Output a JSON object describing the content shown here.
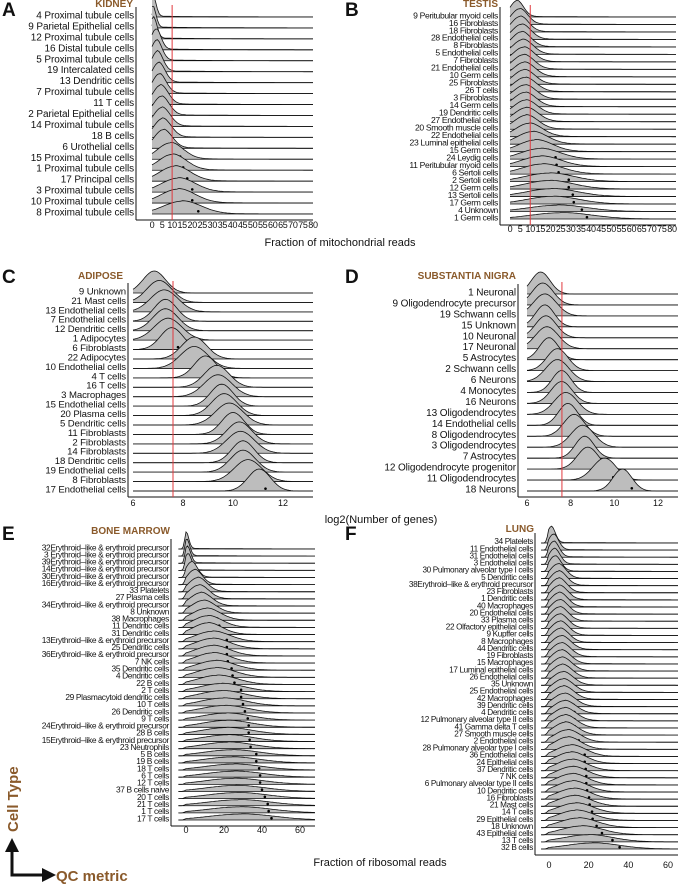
{
  "figure": {
    "axis_titles": {
      "mito": "Fraction of mitochondrial reads",
      "genes": "log2(Number of genes)",
      "ribo": "Fraction of ribosomal reads"
    },
    "legend": {
      "y_label": "Cell Type",
      "x_label": "QC metric"
    },
    "colors": {
      "density_fill": "#bdbdbd",
      "threshold": "#e0393e",
      "title": "#8a5a2b"
    }
  },
  "chart_data": [
    {
      "panel": "A",
      "title": "KIDNEY",
      "type": "ridgeline",
      "metric": "mito",
      "xlim": [
        0,
        80
      ],
      "threshold": 10,
      "ticks": [
        0,
        5,
        10,
        15,
        20,
        25,
        30,
        35,
        40,
        45,
        50,
        55,
        60,
        65,
        70,
        75,
        80
      ],
      "categories": [
        "4 Proximal tubule cells",
        "9 Parietal Epithelial cells",
        "12 Proximal tubule cells",
        "16 Distal tubule cells",
        "5 Proximal tubule cells",
        "19 Intercalated cells",
        "13 Dendritic cells",
        "7 Proximal tubule cells",
        "11 T cells",
        "2 Parietal Epithelial cells",
        "14 Proximal tubule cells",
        "18 B cells",
        "6 Urothelial cells",
        "15 Proximal tubule cells",
        "1 Proximal tubule cells",
        "17 Principal cells",
        "3 Proximal tubule cells",
        "10 Proximal tubule cells",
        "8 Proximal tubule cells"
      ],
      "medians": [
        0.5,
        0.5,
        1,
        3,
        3.5,
        4,
        5,
        5.5,
        6.5,
        7,
        7.5,
        8,
        8.5,
        14,
        15.5,
        17.5,
        20,
        20,
        23
      ]
    },
    {
      "panel": "B",
      "title": "TESTIS",
      "type": "ridgeline",
      "metric": "mito",
      "xlim": [
        0,
        80
      ],
      "threshold": 10,
      "ticks": [
        0,
        5,
        10,
        15,
        20,
        25,
        30,
        35,
        40,
        45,
        50,
        55,
        60,
        65,
        70,
        75,
        80
      ],
      "categories": [
        "9 Peritubular myoid cells",
        "16 Fibroblasts",
        "18 Fibroblasts",
        "28 Endothelial cells",
        "8 Fibroblasts",
        "5 Endothelial cells",
        "7 Fibroblasts",
        "21 Endothelial cells",
        "10 Germ cells",
        "25 Fibroblasts",
        "26 T cells",
        "3 Fibroblasts",
        "14 Germ cells",
        "19 Dendritic cells",
        "27 Endothelial cells",
        "20 Smooth muscle cells",
        "22 Endothelial cells",
        "23 Luminal epithelial cells",
        "15 Germ cells",
        "24 Leydig cells",
        "11 Peritubular myoid cells",
        "6 Sertoli cells",
        "2 Sertoli cells",
        "12 Germ cells",
        "13 Sertoli cells",
        "17 Germ cells",
        "4 Unknown",
        "1 Germ cells"
      ],
      "medians": [
        5,
        7,
        7.5,
        8.5,
        8.5,
        9.5,
        10,
        10,
        10.5,
        10.5,
        11,
        11,
        11,
        11.5,
        12,
        12,
        14,
        16.5,
        19,
        22.5,
        23,
        24,
        29,
        29,
        31,
        31.5,
        35.5,
        38
      ]
    },
    {
      "panel": "C",
      "title": "ADIPOSE",
      "type": "ridgeline",
      "metric": "genes",
      "xlim": [
        6,
        13.2
      ],
      "threshold": 7.6,
      "ticks": [
        6,
        8,
        10,
        12
      ],
      "categories": [
        "9 Unknown",
        "21 Mast cells",
        "13 Endothelial cells",
        "7 Endothelial cells",
        "12 Dendritic cells",
        "1 Adipocytes",
        "6 Fibroblasts",
        "22 Adipocytes",
        "10 Endothelial cells",
        "4 T cells",
        "16 T cells",
        "3 Macrophages",
        "15 Endothelial cells",
        "20 Plasma cells",
        "5 Dendritic cells",
        "11 Fibroblasts",
        "2 Fibroblasts",
        "14 Fibroblasts",
        "18 Dendritic cells",
        "19 Endothelial cells",
        "8 Fibroblasts",
        "17 Endothelial cells"
      ],
      "medians": [
        7.1,
        7.3,
        7.5,
        7.55,
        7.55,
        7.65,
        7.8,
        8.7,
        8.7,
        9.15,
        9.6,
        9.65,
        9.8,
        9.9,
        10.1,
        10.25,
        10.5,
        10.55,
        10.65,
        10.65,
        10.85,
        11.3
      ]
    },
    {
      "panel": "D",
      "title": "SUBSTANTIA NIGRA",
      "type": "ridgeline",
      "metric": "genes",
      "xlim": [
        6,
        13.2
      ],
      "threshold": 7.6,
      "ticks": [
        6,
        8,
        10,
        12
      ],
      "categories": [
        "1 Neuronal",
        "9 Oligodendrocyte precursor",
        "19 Schwann cells",
        "15 Unknown",
        "10 Neuronal",
        "17 Neuronal",
        "5 Astrocytes",
        "2 Schwann cells",
        "6 Neurons",
        "4 Monocytes",
        "16 Neurons",
        "13 Oligodendrocytes",
        "14 Endothelial cells",
        "8 Oligodendrocytes",
        "3 Oligodendrocytes",
        "7 Astrocytes",
        "12 Oligodendrocyte progenitor",
        "11 Oligodendrocytes",
        "18 Neurons"
      ],
      "medians": [
        6.9,
        7.0,
        7.1,
        7.1,
        7.15,
        7.2,
        7.3,
        7.7,
        7.7,
        7.9,
        7.9,
        8.1,
        8.2,
        8.5,
        8.9,
        9.0,
        9.15,
        9.95,
        10.8
      ]
    },
    {
      "panel": "E",
      "title": "BONE MARROW",
      "type": "ridgeline",
      "metric": "ribo",
      "xlim": [
        -4,
        68
      ],
      "threshold": null,
      "ticks": [
        0,
        20,
        40,
        60
      ],
      "categories": [
        "32Erythroid–like & erythroid precursor",
        "3 Erythroid–like & erythroid precursor",
        "39Erythroid–like & erythroid precursor",
        "14Erythroid–like & erythroid precursor",
        "30Erythroid–like & erythroid precursor",
        "16Erythroid–like & erythroid precursor",
        "33 Platelets",
        "27 Plasma cells",
        "34Erythroid–like & erythroid precursor",
        "8 Unknown",
        "38 Macrophages",
        "11 Dendritic cells",
        "31 Dendritic cells",
        "13Erythroid–like & erythroid precursor",
        "25 Dendritic cells",
        "36Erythroid–like & erythroid precursor",
        "7 NK cells",
        "35 Dendritic cells",
        "4 Dendritic cells",
        "22 B cells",
        "2 T cells",
        "29 Plasmacytoid dendritic cells",
        "10 T cells",
        "26 Dendritic cells",
        "9 T cells",
        "24Erythroid–like & erythroid precursor",
        "28 B cells",
        "15Erythroid–like & erythroid precursor",
        "23 Neutrophils",
        "5 B cells",
        "19 B cells",
        "18 T cells",
        "6 T cells",
        "12 T cells",
        "37 B cells naive",
        "20 T cells",
        "21 T cells",
        "1 T cells",
        "17 T cells"
      ],
      "medians": [
        0,
        0.5,
        1,
        1.5,
        4.5,
        7,
        9.5,
        10.5,
        12,
        14,
        16.5,
        17.5,
        17.5,
        21.5,
        21.5,
        21.5,
        22,
        24,
        24.5,
        25.5,
        29,
        29,
        30,
        31,
        32.5,
        33,
        33,
        33.5,
        34,
        37,
        37,
        38.5,
        39,
        39,
        40,
        41.5,
        43,
        43.5,
        45
      ]
    },
    {
      "panel": "F",
      "title": "LUNG",
      "type": "ridgeline",
      "metric": "ribo",
      "xlim": [
        -4,
        68
      ],
      "threshold": null,
      "ticks": [
        0,
        20,
        40,
        60
      ],
      "categories": [
        "34 Platelets",
        "11 Endothelial cells",
        "31 Endothelial cells",
        "3 Endothelial cells",
        "30 Pulmonary alveolar type I cells",
        "5 Dendritic cells",
        "38Erythroid–like & erythroid precursor",
        "23 Fibroblasts",
        "1 Dendritic cells",
        "40 Macrophages",
        "20 Endothelial cells",
        "33 Plasma cells",
        "22 Olfactory epithelial cells",
        "9 Kupffer cells",
        "8 Macrophages",
        "44 Dendritic cells",
        "19 Fibroblasts",
        "15 Macrophages",
        "17 Luminal epithelial cells",
        "26 Endothelial cells",
        "35 Unknown",
        "25 Endothelial cells",
        "42 Macrophages",
        "39 Dendritic cells",
        "4 Dendritic cells",
        "12 Pulmonary alveolar type II cells",
        "41 Gamma delta T cells",
        "27 Smooth muscle cells",
        "2 Endothelial cells",
        "28 Pulmonary alveolar type I cells",
        "36 Endothelial cells",
        "24 Epithelial cells",
        "37 Dendritic cells",
        "7 NK cells",
        "6 Pulmonary alveolar type II cells",
        "10 Dendritic cells",
        "16 Fibroblasts",
        "21 Mast cells",
        "14 T cells",
        "29 Epithelial cells",
        "18 Unknown",
        "43 Epithelial cells",
        "13 T cells",
        "32 B cells"
      ],
      "medians": [
        2,
        3.7,
        4,
        4.5,
        5,
        7.5,
        8,
        8,
        8.5,
        8.5,
        8.7,
        8.7,
        8.7,
        9,
        9.2,
        10,
        10,
        10,
        10.5,
        10.8,
        11.3,
        11.5,
        11.7,
        12.4,
        12.8,
        12.8,
        13,
        13.5,
        15,
        15.3,
        18,
        18,
        18.5,
        18.8,
        18.8,
        19.2,
        20.2,
        20.5,
        21.7,
        22,
        24,
        26.7,
        32,
        35.6
      ]
    }
  ]
}
